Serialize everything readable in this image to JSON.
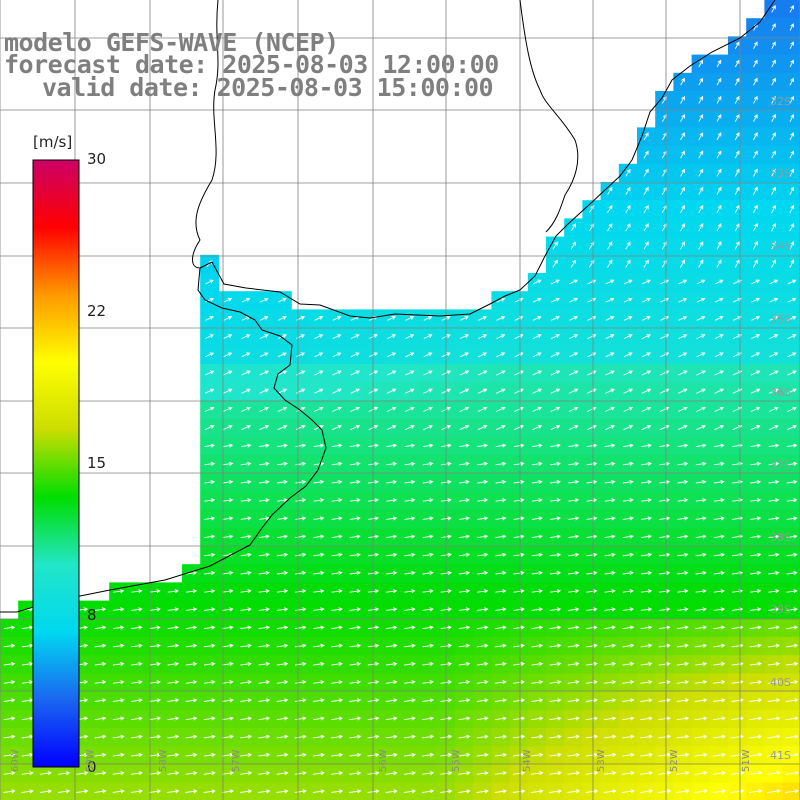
{
  "title": {
    "line1": "modelo GEFS-WAVE (NCEP)",
    "line2": "forecast date: 2025-08-03 12:00:00",
    "line3": "valid date: 2025-08-03 15:00:00"
  },
  "colorbar": {
    "unit": "[m/s]",
    "ticks": [
      "30",
      "22",
      "15",
      "8",
      "0"
    ],
    "tick_values": [
      30,
      22,
      15,
      8,
      0
    ],
    "range": [
      0,
      30
    ],
    "colors": [
      "#0000ff",
      "#1a66f0",
      "#00d8f0",
      "#22e6c8",
      "#00dd00",
      "#ccdd00",
      "#ffff00",
      "#ff9900",
      "#ff0000",
      "#cc0066"
    ]
  },
  "grid": {
    "lat_labels": [
      "32S",
      "33S",
      "34S",
      "35S",
      "36S",
      "37S",
      "38S",
      "39S",
      "40S",
      "41S"
    ],
    "lon_labels": [
      "60W",
      "59W",
      "58W",
      "57W",
      "56W",
      "55W",
      "54W",
      "53W",
      "52W",
      "51W"
    ]
  },
  "field": {
    "variable": "wind speed",
    "land_color": "#ffffff",
    "coastline_color": "#000000",
    "gridline_color": "#808080",
    "arrow_color": "#ffffff"
  }
}
